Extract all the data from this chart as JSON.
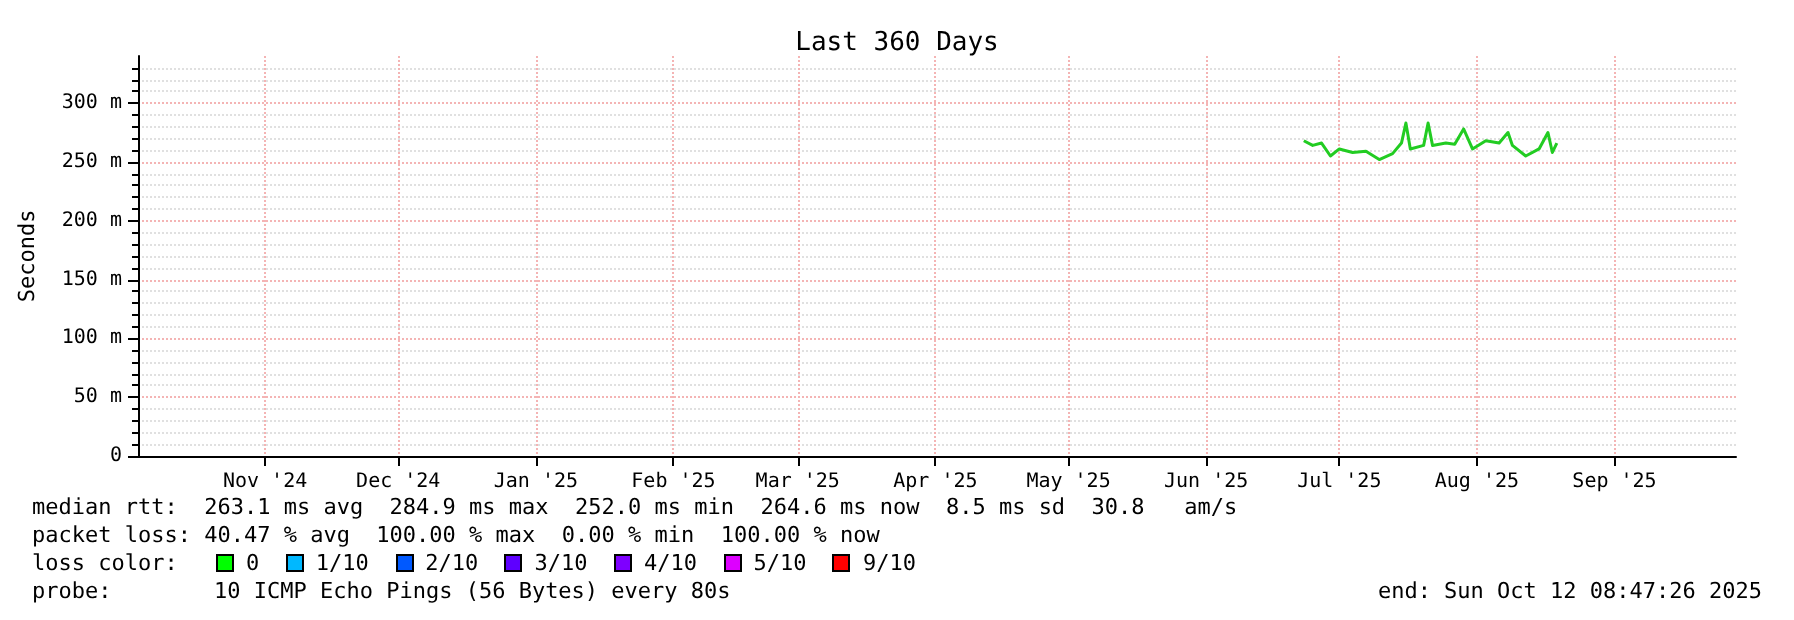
{
  "chart_data": {
    "type": "line",
    "title": "Last 360 Days",
    "ylabel": "Seconds",
    "xlim": [
      "2024-10-17T08:47",
      "2025-10-12T08:47"
    ],
    "xticks": [
      {
        "value": "2024-11-15",
        "label": "Nov '24"
      },
      {
        "value": "2024-12-15",
        "label": "Dec '24"
      },
      {
        "value": "2025-01-15",
        "label": "Jan '25"
      },
      {
        "value": "2025-02-15",
        "label": "Feb '25"
      },
      {
        "value": "2025-03-15",
        "label": "Mar '25"
      },
      {
        "value": "2025-04-15",
        "label": "Apr '25"
      },
      {
        "value": "2025-05-15",
        "label": "May '25"
      },
      {
        "value": "2025-06-15",
        "label": "Jun '25"
      },
      {
        "value": "2025-07-15",
        "label": "Jul '25"
      },
      {
        "value": "2025-08-15",
        "label": "Aug '25"
      },
      {
        "value": "2025-09-15",
        "label": "Sep '25"
      }
    ],
    "ylim": [
      0,
      340
    ],
    "yticks": [
      0,
      {
        "value": 50,
        "label": "50 m"
      },
      {
        "value": 100,
        "label": "100 m"
      },
      {
        "value": 150,
        "label": "150 m"
      },
      {
        "value": 200,
        "label": "200 m"
      },
      {
        "value": 250,
        "label": "250 m"
      },
      {
        "value": 300,
        "label": "300 m"
      }
    ],
    "x": [
      "2025-07-07",
      "2025-07-09",
      "2025-07-11",
      "2025-07-13",
      "2025-07-15",
      "2025-07-18",
      "2025-07-21",
      "2025-07-24",
      "2025-07-27",
      "2025-07-29",
      "2025-07-30",
      "2025-07-31",
      "2025-08-03",
      "2025-08-04",
      "2025-08-05",
      "2025-08-08",
      "2025-08-10",
      "2025-08-12",
      "2025-08-14",
      "2025-08-17",
      "2025-08-20",
      "2025-08-22",
      "2025-08-23",
      "2025-08-26",
      "2025-08-29",
      "2025-08-31",
      "2025-09-01",
      "2025-09-02"
    ],
    "series": [
      {
        "color": "#22cc22",
        "values": [
          268,
          264,
          266,
          255,
          261,
          258,
          259,
          252,
          257,
          266,
          283,
          261,
          264,
          283,
          264,
          266,
          265,
          278,
          261,
          268,
          266,
          275,
          264,
          255,
          261,
          275,
          258,
          266
        ]
      }
    ],
    "grid": true,
    "marker": "none",
    "line_style": "solid",
    "annotations": [
      "median rtt:  263.1 ms avg  284.9 ms max  252.0 ms min  264.6 ms now  8.5 ms sd  30.8   am/s",
      "packet loss: 40.47 % avg  100.00 % max  0.00 % min  100.00 % now",
      "loss color:",
      "0",
      "1/10",
      "2/10",
      "3/10",
      "4/10",
      "5/10",
      "9/10",
      "probe:",
      "10 ICMP Echo Pings (56 Bytes) every 80s",
      "end: Sun Oct 12 08:47:26 2025"
    ]
  }
}
